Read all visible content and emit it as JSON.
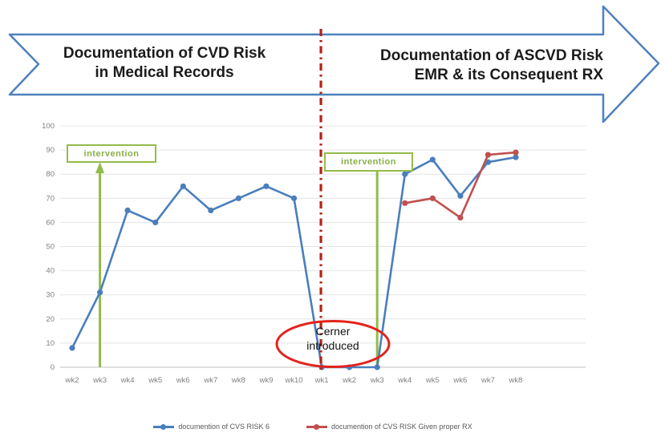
{
  "banner": {
    "left": {
      "line1": "Documentation of CVD Risk",
      "line2": "in Medical Records"
    },
    "right": {
      "line1": "Documentation of ASCVD Risk",
      "line2": "EMR & its Consequent RX"
    },
    "arrow_border_color": "#4F81BD"
  },
  "chart_data": {
    "type": "line",
    "title": "",
    "xlabel": "",
    "ylabel": "",
    "categories": [
      "wk2",
      "wk3",
      "wk4",
      "wk5",
      "wk6",
      "wk7",
      "wk8",
      "wk9",
      "wk10",
      "wk1",
      "wk2",
      "wk3",
      "wk4",
      "wk5",
      "wk6",
      "wk7",
      "wk8"
    ],
    "series": [
      {
        "name": "documention of CVS  RISK 6",
        "color": "#4A7EBD",
        "values": [
          8,
          31,
          65,
          60,
          75,
          65,
          70,
          75,
          70,
          0,
          0,
          0,
          80,
          86,
          71,
          85,
          87
        ]
      },
      {
        "name": "documention of CVS  RISK Given proper RX",
        "color": "#C0504D",
        "values": [
          null,
          null,
          null,
          null,
          null,
          null,
          null,
          null,
          null,
          null,
          null,
          null,
          68,
          70,
          62,
          88,
          89
        ]
      }
    ],
    "ylim": [
      0,
      100
    ],
    "ytick_interval": 10,
    "grid": true,
    "legend_position": "bottom"
  },
  "annotations": {
    "intervention_left": {
      "label": "intervention",
      "category": "wk3",
      "category_index": 1,
      "color": "#94BB4C",
      "has_arrowhead": true
    },
    "intervention_right": {
      "label": "intervention",
      "category": "wk3",
      "category_index": 11,
      "color": "#94BB4C",
      "has_arrowhead": false
    },
    "cerner": {
      "line1": "Cerner",
      "line2": "introduced",
      "ellipse_color": "#E3231C"
    },
    "phase_divider": {
      "style": "dash-dot",
      "color": "#B42318",
      "category": "wk1",
      "category_index": 9
    }
  }
}
